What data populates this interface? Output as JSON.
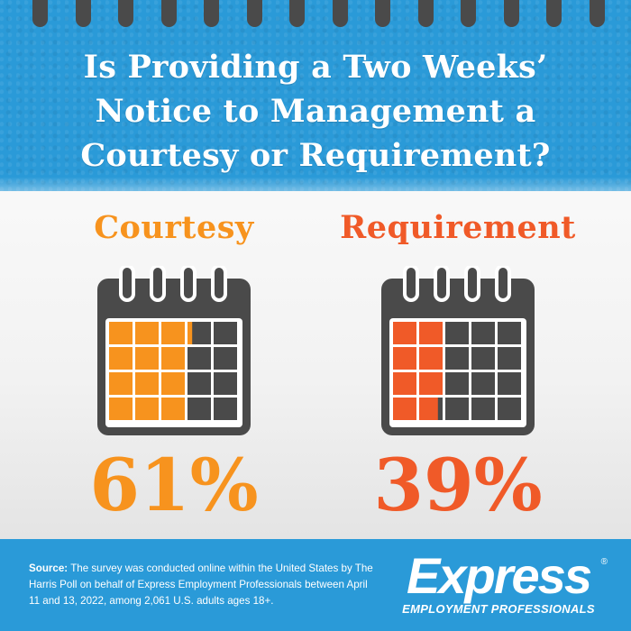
{
  "header": {
    "headline_line1": "Is Providing a Two Weeks’",
    "headline_line2": "Notice to Management a",
    "headline_line3": "Courtesy or Requirement?"
  },
  "chart_data": {
    "type": "pictograph",
    "title": "Is Providing a Two Weeks’ Notice to Management a Courtesy or Requirement?",
    "unit": "%",
    "categories": [
      "Courtesy",
      "Requirement"
    ],
    "values": [
      61,
      39
    ],
    "labels": [
      "61%",
      "39%"
    ],
    "colors": [
      "#f7931e",
      "#f05a28"
    ],
    "empty_color": "#4a4a4a",
    "grid": {
      "rows": 4,
      "cols": 5,
      "total": 100
    }
  },
  "colors": {
    "brand_blue": "#2a9ad8",
    "calendar_gray": "#4a4a4a"
  },
  "footer": {
    "source_label": "Source:",
    "source_text": "The survey was conducted online within the United States by The Harris Poll on behalf of Express Employment Professionals between April 11 and 13, 2022, among 2,061 U.S. adults ages 18+.",
    "logo_word": "Express",
    "logo_reg": "®",
    "logo_tagline": "EMPLOYMENT PROFESSIONALS"
  }
}
